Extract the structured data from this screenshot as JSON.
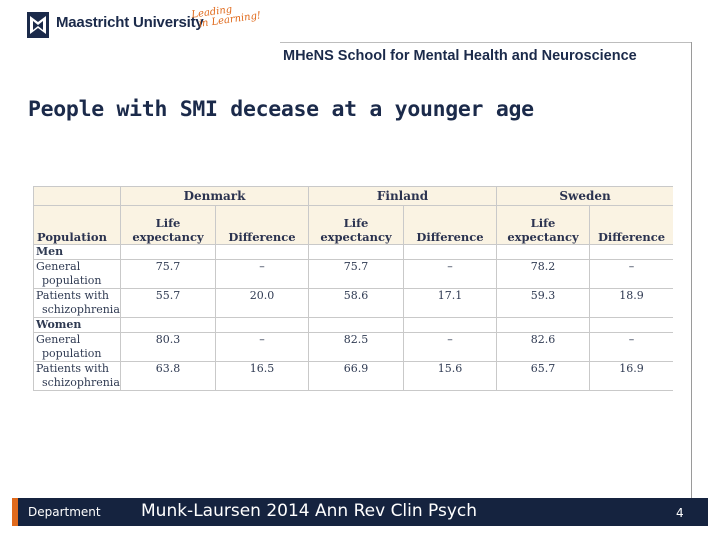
{
  "header": {
    "university": "Maastricht University",
    "tagline_line1": "Leading",
    "tagline_line2": "in Learning!",
    "school": "MHeNS School for Mental Health and Neuroscience",
    "brand_color": "#1b2a4a",
    "accent_color": "#e06a1c"
  },
  "slide": {
    "title": "People with SMI decease at a younger age"
  },
  "table": {
    "countries": [
      "Denmark",
      "Finland",
      "Sweden"
    ],
    "population_header": "Population",
    "life_expectancy_line1": "Life",
    "life_expectancy_line2": "expectancy",
    "difference_header": "Difference",
    "groups": [
      {
        "name": "Men",
        "rows": [
          {
            "label_line1": "General",
            "label_line2": "population",
            "values": [
              "75.7",
              "–",
              "75.7",
              "–",
              "78.2",
              "–"
            ]
          },
          {
            "label_line1": "Patients with",
            "label_line2": "schizophrenia",
            "values": [
              "55.7",
              "20.0",
              "58.6",
              "17.1",
              "59.3",
              "18.9"
            ]
          }
        ]
      },
      {
        "name": "Women",
        "rows": [
          {
            "label_line1": "General",
            "label_line2": "population",
            "values": [
              "80.3",
              "–",
              "82.5",
              "–",
              "82.6",
              "–"
            ]
          },
          {
            "label_line1": "Patients with",
            "label_line2": "schizophrenia",
            "values": [
              "63.8",
              "16.5",
              "66.9",
              "15.6",
              "65.7",
              "16.9"
            ]
          }
        ]
      }
    ]
  },
  "footer": {
    "department": "Department",
    "citation": "Munk-Laursen 2014 Ann Rev Clin Psych",
    "page_number": "4"
  }
}
